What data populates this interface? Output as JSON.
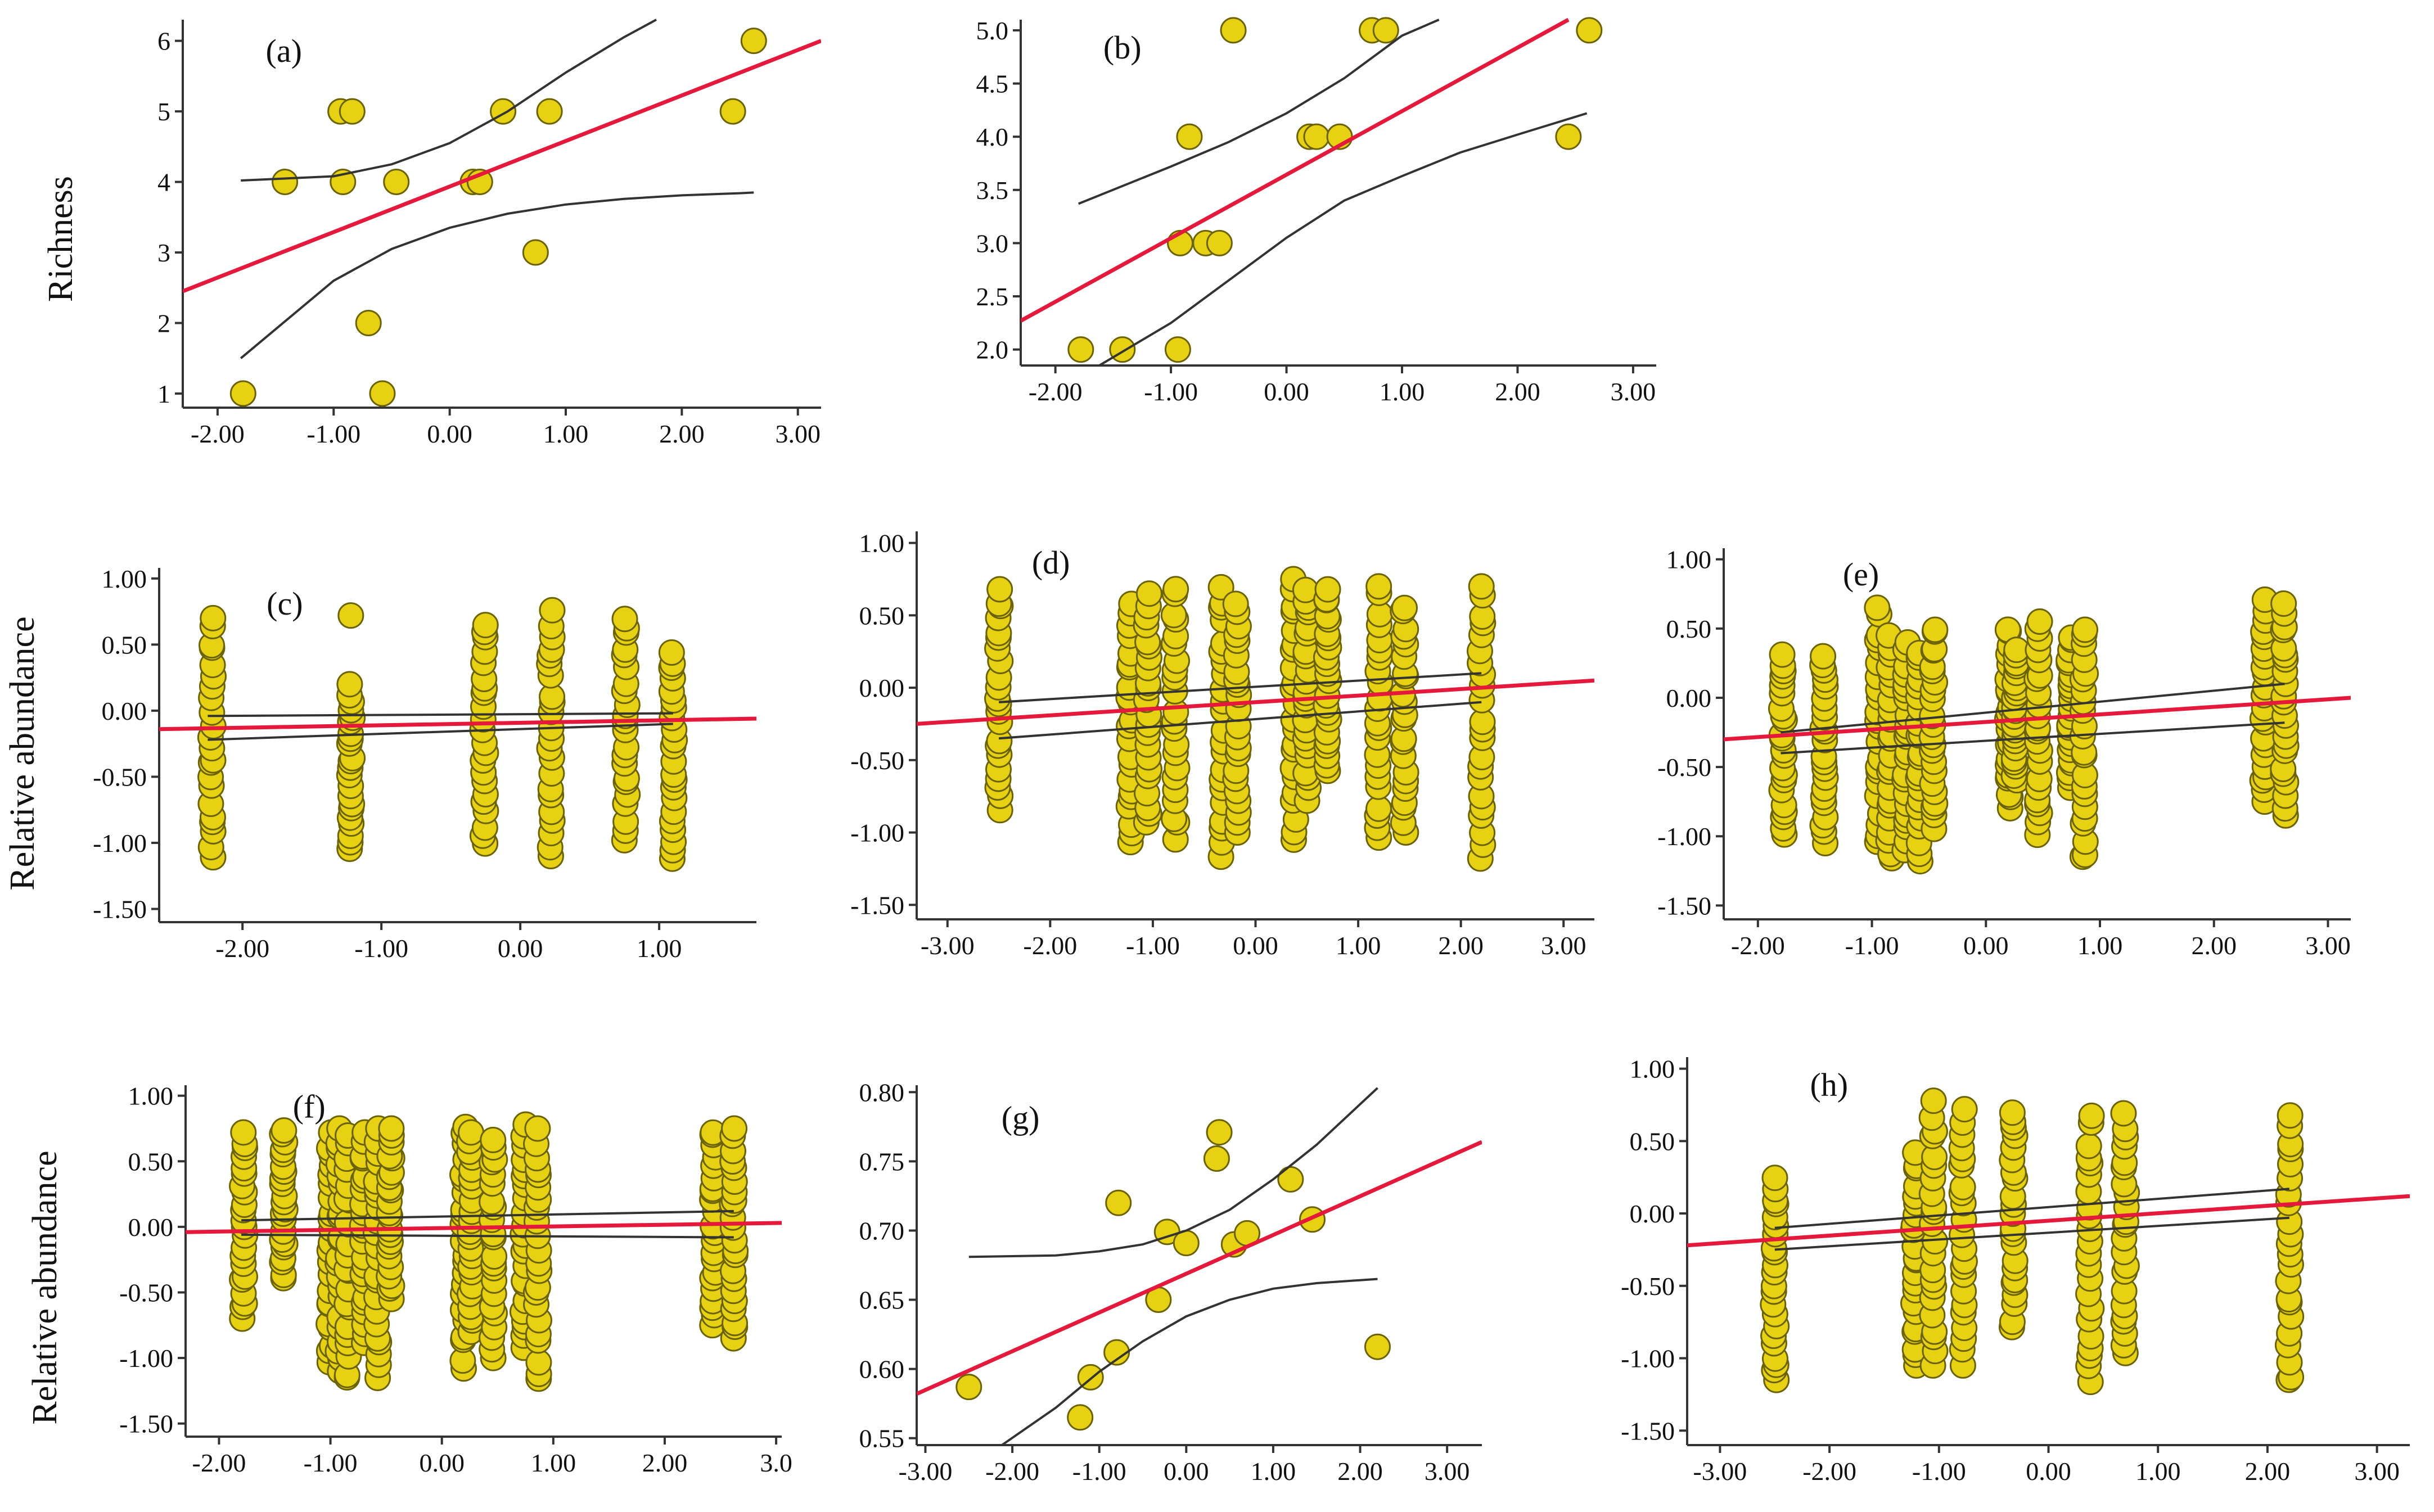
{
  "figure": {
    "ylabel_richness": "Richness",
    "ylabel_abundance_row2": "Relative abundance",
    "ylabel_abundance_row3": "Relative abundance"
  },
  "chart_data": [
    {
      "id": "a",
      "type": "scatter",
      "label": "(a)",
      "xlim": [
        -2.3,
        3.2
      ],
      "ylim": [
        0.8,
        6.3
      ],
      "xticks": [
        -2,
        -1,
        0,
        1,
        2,
        3
      ],
      "xtick_labels": [
        "-2.00",
        "-1.00",
        "0.00",
        "1.00",
        "2.00",
        "3.00"
      ],
      "yticks": [
        1,
        2,
        3,
        4,
        5,
        6
      ],
      "ytick_labels": [
        "1",
        "2",
        "3",
        "4",
        "5",
        "6"
      ],
      "x": [
        -1.78,
        -1.42,
        -0.94,
        -0.92,
        -0.84,
        -0.7,
        -0.58,
        -0.46,
        0.2,
        0.26,
        0.46,
        0.74,
        0.86,
        2.44,
        2.62
      ],
      "y": [
        1,
        4,
        5,
        4,
        5,
        2,
        1,
        4,
        4,
        4,
        5,
        3,
        5,
        5,
        6
      ],
      "fit_line": {
        "x": [
          -2.3,
          3.2
        ],
        "y": [
          2.45,
          6.0
        ]
      },
      "ci_upper": {
        "x": [
          -1.8,
          -1.0,
          -0.5,
          0,
          0.5,
          1.0,
          1.5,
          1.78
        ],
        "y": [
          4.02,
          4.08,
          4.25,
          4.55,
          5.0,
          5.55,
          6.05,
          6.3
        ]
      },
      "ci_lower": {
        "x": [
          -1.8,
          -1.0,
          -0.5,
          0,
          0.5,
          1.0,
          1.5,
          2.0,
          2.5,
          2.62
        ],
        "y": [
          1.5,
          2.6,
          3.05,
          3.35,
          3.55,
          3.68,
          3.76,
          3.81,
          3.84,
          3.85
        ]
      }
    },
    {
      "id": "b",
      "type": "scatter",
      "label": "(b)",
      "xlim": [
        -2.3,
        3.2
      ],
      "ylim": [
        1.85,
        5.1
      ],
      "xticks": [
        -2,
        -1,
        0,
        1,
        2,
        3
      ],
      "xtick_labels": [
        "-2.00",
        "-1.00",
        "0.00",
        "1.00",
        "2.00",
        "3.00"
      ],
      "yticks": [
        2.0,
        2.5,
        3.0,
        3.5,
        4.0,
        4.5,
        5.0
      ],
      "ytick_labels": [
        "2.0",
        "2.5",
        "3.0",
        "3.5",
        "4.0",
        "4.5",
        "5.0"
      ],
      "x": [
        -1.78,
        -1.42,
        -0.94,
        -0.92,
        -0.84,
        -0.7,
        -0.58,
        -0.46,
        0.2,
        0.26,
        0.46,
        0.74,
        0.86,
        2.44,
        2.62
      ],
      "y": [
        2,
        2,
        2,
        3,
        4,
        3,
        3,
        5,
        4,
        4,
        4,
        5,
        5,
        4,
        5
      ],
      "fit_line": {
        "x": [
          -2.3,
          2.44
        ],
        "y": [
          2.27,
          5.1
        ]
      },
      "ci_upper": {
        "x": [
          -1.8,
          -1.0,
          -0.5,
          0,
          0.5,
          1.0,
          1.32
        ],
        "y": [
          3.37,
          3.72,
          3.95,
          4.22,
          4.55,
          4.95,
          5.1
        ]
      },
      "ci_lower": {
        "x": [
          -1.62,
          -1.0,
          -0.5,
          0,
          0.5,
          1.0,
          1.5,
          2.0,
          2.6
        ],
        "y": [
          1.85,
          2.25,
          2.65,
          3.05,
          3.4,
          3.63,
          3.85,
          4.02,
          4.22
        ]
      }
    },
    {
      "id": "c",
      "type": "scatter",
      "label": "(c)",
      "xlim": [
        -2.6,
        1.7
      ],
      "ylim": [
        -1.6,
        1.08
      ],
      "xticks": [
        -2,
        -1,
        0,
        1
      ],
      "xtick_labels": [
        "-2.00",
        "-1.00",
        "0.00",
        "1.00"
      ],
      "yticks": [
        -1.5,
        -1.0,
        -0.5,
        0,
        0.5,
        1.0
      ],
      "ytick_labels": [
        "-1.50",
        "-1.00",
        "-0.50",
        "0.00",
        "0.50",
        "1.00"
      ],
      "x_groups": [
        -2.22,
        -1.22,
        -0.26,
        0.22,
        0.76,
        1.1
      ],
      "group_ranges": [
        [
          -1.12,
          0.7
        ],
        [
          -1.05,
          0.2
        ],
        [
          -1.02,
          0.68
        ],
        [
          -1.1,
          0.76
        ],
        [
          -0.98,
          0.72
        ],
        [
          -1.12,
          0.44
        ]
      ],
      "extra_points": [
        {
          "x": -1.22,
          "y": 0.72
        }
      ],
      "fit_line": {
        "x": [
          -2.6,
          1.7
        ],
        "y": [
          -0.14,
          -0.06
        ]
      },
      "ci_upper": {
        "x": [
          -2.25,
          1.1
        ],
        "y": [
          -0.04,
          -0.02
        ]
      },
      "ci_lower": {
        "x": [
          -2.25,
          1.1
        ],
        "y": [
          -0.22,
          -0.1
        ]
      }
    },
    {
      "id": "d",
      "type": "scatter",
      "label": "(d)",
      "xlim": [
        -3.3,
        3.3
      ],
      "ylim": [
        -1.6,
        1.08
      ],
      "xticks": [
        -3,
        -2,
        -1,
        0,
        1,
        2,
        3
      ],
      "xtick_labels": [
        "-3.00",
        "-2.00",
        "-1.00",
        "0.00",
        "1.00",
        "2.00",
        "3.00"
      ],
      "yticks": [
        -1.5,
        -1.0,
        -0.5,
        0,
        0.5,
        1.0
      ],
      "ytick_labels": [
        "-1.50",
        "-1.00",
        "-0.50",
        "0.00",
        "0.50",
        "1.00"
      ],
      "x_groups": [
        -2.5,
        -1.22,
        -1.05,
        -0.78,
        -0.32,
        -0.18,
        0.38,
        0.5,
        0.7,
        1.2,
        1.45,
        2.2
      ],
      "group_ranges": [
        [
          -0.85,
          0.68
        ],
        [
          -1.08,
          0.58
        ],
        [
          -0.95,
          0.65
        ],
        [
          -1.05,
          0.7
        ],
        [
          -1.18,
          0.7
        ],
        [
          -1.0,
          0.6
        ],
        [
          -1.05,
          0.75
        ],
        [
          -0.78,
          0.7
        ],
        [
          -0.6,
          0.7
        ],
        [
          -1.05,
          0.7
        ],
        [
          -1.0,
          0.58
        ],
        [
          -1.18,
          0.7
        ]
      ],
      "extra_points": [],
      "fit_line": {
        "x": [
          -3.3,
          3.3
        ],
        "y": [
          -0.25,
          0.05
        ]
      },
      "ci_upper": {
        "x": [
          -2.5,
          2.2
        ],
        "y": [
          -0.1,
          0.1
        ]
      },
      "ci_lower": {
        "x": [
          -2.5,
          2.2
        ],
        "y": [
          -0.35,
          -0.1
        ]
      }
    },
    {
      "id": "e",
      "type": "scatter",
      "label": "(e)",
      "xlim": [
        -2.3,
        3.2
      ],
      "ylim": [
        -1.6,
        1.08
      ],
      "xticks": [
        -2,
        -1,
        0,
        1,
        2,
        3
      ],
      "xtick_labels": [
        "-2.00",
        "-1.00",
        "0.00",
        "1.00",
        "2.00",
        "3.00"
      ],
      "yticks": [
        -1.5,
        -1.0,
        -0.5,
        0,
        0.5,
        1.0
      ],
      "ytick_labels": [
        "-1.50",
        "-1.00",
        "-0.50",
        "0.00",
        "0.50",
        "1.00"
      ],
      "x_groups": [
        -1.78,
        -1.42,
        -0.94,
        -0.84,
        -0.7,
        -0.58,
        -0.46,
        0.2,
        0.26,
        0.46,
        0.74,
        0.86,
        2.44,
        2.62
      ],
      "group_ranges": [
        [
          -1.0,
          0.32
        ],
        [
          -1.05,
          0.32
        ],
        [
          -1.05,
          0.65
        ],
        [
          -1.18,
          0.45
        ],
        [
          -1.1,
          0.4
        ],
        [
          -1.18,
          0.35
        ],
        [
          -0.95,
          0.52
        ],
        [
          -0.8,
          0.52
        ],
        [
          -0.6,
          0.35
        ],
        [
          -1.0,
          0.55
        ],
        [
          -0.65,
          0.45
        ],
        [
          -1.18,
          0.52
        ],
        [
          -0.75,
          0.72
        ],
        [
          -0.85,
          0.68
        ]
      ],
      "extra_points": [],
      "fit_line": {
        "x": [
          -2.3,
          3.2
        ],
        "y": [
          -0.3,
          0.0
        ]
      },
      "ci_upper": {
        "x": [
          -1.8,
          2.62
        ],
        "y": [
          -0.25,
          0.1
        ]
      },
      "ci_lower": {
        "x": [
          -1.8,
          2.62
        ],
        "y": [
          -0.4,
          -0.18
        ]
      }
    },
    {
      "id": "f",
      "type": "scatter",
      "label": "(f)",
      "xlim": [
        -2.3,
        3.05
      ],
      "ylim": [
        -1.6,
        1.08
      ],
      "xticks": [
        -2,
        -1,
        0,
        1,
        2,
        3
      ],
      "xtick_labels": [
        "-2.00",
        "-1.00",
        "0.00",
        "1.00",
        "2.00",
        "3.0"
      ],
      "yticks": [
        -1.5,
        -1.0,
        -0.5,
        0,
        0.5,
        1.0
      ],
      "ytick_labels": [
        "-1.50",
        "-1.00",
        "-0.50",
        "0.00",
        "0.50",
        "1.00"
      ],
      "x_groups": [
        -1.78,
        -1.42,
        -1.0,
        -0.92,
        -0.84,
        -0.7,
        -0.58,
        -0.46,
        0.2,
        0.26,
        0.46,
        0.74,
        0.86,
        2.44,
        2.62
      ],
      "group_ranges": [
        [
          -0.7,
          0.72
        ],
        [
          -0.4,
          0.75
        ],
        [
          -1.05,
          0.72
        ],
        [
          -1.1,
          0.75
        ],
        [
          -1.18,
          0.7
        ],
        [
          -0.9,
          0.72
        ],
        [
          -1.18,
          0.75
        ],
        [
          -0.55,
          0.75
        ],
        [
          -1.08,
          0.78
        ],
        [
          -0.8,
          0.72
        ],
        [
          -1.0,
          0.7
        ],
        [
          -0.95,
          0.78
        ],
        [
          -1.18,
          0.75
        ],
        [
          -0.75,
          0.75
        ],
        [
          -0.85,
          0.75
        ]
      ],
      "extra_points": [],
      "fit_line": {
        "x": [
          -2.3,
          3.05
        ],
        "y": [
          -0.04,
          0.03
        ]
      },
      "ci_upper": {
        "x": [
          -1.8,
          2.62
        ],
        "y": [
          0.05,
          0.12
        ]
      },
      "ci_lower": {
        "x": [
          -1.8,
          2.62
        ],
        "y": [
          -0.06,
          -0.08
        ]
      }
    },
    {
      "id": "g",
      "type": "scatter",
      "label": "(g)",
      "xlim": [
        -3.1,
        3.4
      ],
      "ylim": [
        0.545,
        0.805
      ],
      "xticks": [
        -3,
        -2,
        -1,
        0,
        1,
        2,
        3
      ],
      "xtick_labels": [
        "-3.00",
        "-2.00",
        "-1.00",
        "0.00",
        "1.00",
        "2.00",
        "3.00"
      ],
      "yticks": [
        0.55,
        0.6,
        0.65,
        0.7,
        0.75,
        0.8
      ],
      "ytick_labels": [
        "0.55",
        "0.60",
        "0.65",
        "0.70",
        "0.75",
        "0.80"
      ],
      "x": [
        -2.5,
        -1.22,
        -1.1,
        -0.8,
        -0.78,
        -0.32,
        -0.22,
        0.0,
        0.35,
        0.38,
        0.55,
        0.7,
        1.2,
        1.45,
        2.2
      ],
      "y": [
        0.587,
        0.565,
        0.594,
        0.612,
        0.72,
        0.65,
        0.699,
        0.691,
        0.752,
        0.771,
        0.69,
        0.698,
        0.737,
        0.708,
        0.616
      ],
      "fit_line": {
        "x": [
          -3.1,
          3.4
        ],
        "y": [
          0.582,
          0.764
        ]
      },
      "ci_upper": {
        "x": [
          -2.5,
          -1.5,
          -1.0,
          -0.5,
          0,
          0.5,
          1.0,
          1.5,
          2.2
        ],
        "y": [
          0.681,
          0.682,
          0.685,
          0.69,
          0.7,
          0.715,
          0.737,
          0.762,
          0.803
        ]
      },
      "ci_lower": {
        "x": [
          -2.12,
          -1.5,
          -1.0,
          -0.5,
          0,
          0.5,
          1.0,
          1.5,
          2.2
        ],
        "y": [
          0.545,
          0.572,
          0.598,
          0.62,
          0.638,
          0.65,
          0.658,
          0.662,
          0.665
        ]
      }
    },
    {
      "id": "h",
      "type": "scatter",
      "label": "(h)",
      "xlim": [
        -3.3,
        3.3
      ],
      "ylim": [
        -1.6,
        1.08
      ],
      "xticks": [
        -3,
        -2,
        -1,
        0,
        1,
        2,
        3
      ],
      "xtick_labels": [
        "-3.00",
        "-2.00",
        "-1.00",
        "0.00",
        "1.00",
        "2.00",
        "3.00"
      ],
      "yticks": [
        -1.5,
        -1.0,
        -0.5,
        0,
        0.5,
        1.0
      ],
      "ytick_labels": [
        "-1.50",
        "-1.00",
        "-0.50",
        "0.00",
        "0.50",
        "1.00"
      ],
      "x_groups": [
        -2.5,
        -1.22,
        -1.05,
        -0.78,
        -0.32,
        0.38,
        0.7,
        2.2
      ],
      "group_ranges": [
        [
          -1.18,
          0.25
        ],
        [
          -1.05,
          0.42
        ],
        [
          -1.05,
          0.78
        ],
        [
          -1.05,
          0.72
        ],
        [
          -0.8,
          0.72
        ],
        [
          -1.18,
          0.68
        ],
        [
          -1.0,
          0.7
        ],
        [
          -1.18,
          0.7
        ]
      ],
      "extra_points": [],
      "fit_line": {
        "x": [
          -3.3,
          3.3
        ],
        "y": [
          -0.22,
          0.12
        ]
      },
      "ci_upper": {
        "x": [
          -2.5,
          2.2
        ],
        "y": [
          -0.1,
          0.17
        ]
      },
      "ci_lower": {
        "x": [
          -2.5,
          2.2
        ],
        "y": [
          -0.25,
          -0.03
        ]
      }
    }
  ]
}
